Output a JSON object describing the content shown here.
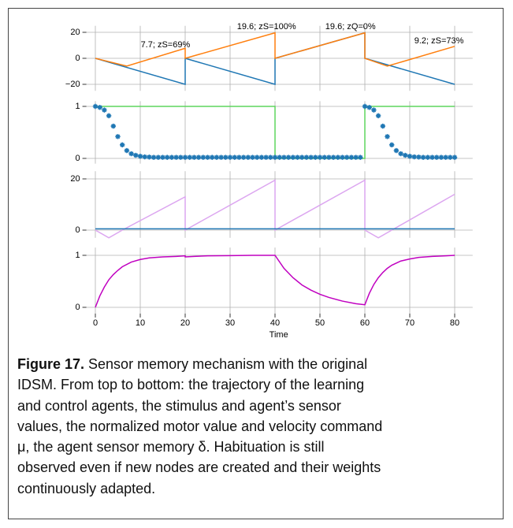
{
  "chart_data": [
    {
      "type": "line",
      "xlim": [
        -2,
        84
      ],
      "ylim": [
        -25,
        25
      ],
      "yticks": [
        {
          "value": -20,
          "label": "−20"
        },
        0,
        20
      ],
      "series": [
        {
          "color": "#1f77b4",
          "x": [
            0,
            20,
            20,
            40,
            40,
            60,
            60,
            80
          ],
          "values": [
            0,
            -20,
            0,
            -20,
            0,
            19.6,
            0,
            -20
          ]
        },
        {
          "color": "#ff7f0e",
          "x": [
            0,
            7,
            20,
            20,
            40,
            40,
            60,
            60,
            65,
            80
          ],
          "values": [
            0,
            -6,
            7.7,
            0,
            19.6,
            0,
            19.6,
            0,
            -6,
            9.2
          ]
        }
      ],
      "annotations": [
        {
          "text": "7.7; zS=69%",
          "x": 15.6,
          "y": 10.3
        },
        {
          "text": "19.6; zS=100%",
          "x": 38.1,
          "y": 24.2
        },
        {
          "text": "19.6; zQ=0%",
          "x": 56.8,
          "y": 24.2
        },
        {
          "text": "9.2; zS=73%",
          "x": 76.5,
          "y": 13.3
        }
      ]
    },
    {
      "type": "line",
      "xlim": [
        -2,
        84
      ],
      "ylim": [
        -0.1,
        1.1
      ],
      "yticks": [
        0,
        1
      ],
      "series": [
        {
          "color": "#5ed65e",
          "x": [
            0,
            40,
            40,
            60,
            60,
            80
          ],
          "values": [
            1,
            1,
            0,
            0,
            1,
            1
          ]
        },
        {
          "color": "#1f77b4",
          "marker": true,
          "x": [
            0,
            1,
            2,
            3,
            4,
            5,
            6,
            7,
            8,
            9,
            10,
            11,
            12,
            13,
            14,
            15,
            16,
            17,
            18,
            19,
            20,
            21,
            22,
            23,
            24,
            25,
            26,
            27,
            28,
            29,
            30,
            31,
            32,
            33,
            34,
            35,
            36,
            37,
            38,
            39,
            40,
            41,
            42,
            43,
            44,
            45,
            46,
            47,
            48,
            49,
            50,
            51,
            52,
            53,
            54,
            55,
            56,
            57,
            58,
            59,
            60,
            61,
            62,
            63,
            64,
            65,
            66,
            67,
            68,
            69,
            70,
            71,
            72,
            73,
            74,
            75,
            76,
            77,
            78,
            79,
            80
          ],
          "values": [
            1,
            0.98,
            0.93,
            0.82,
            0.62,
            0.42,
            0.26,
            0.15,
            0.09,
            0.06,
            0.04,
            0.03,
            0.025,
            0.02,
            0.02,
            0.02,
            0.02,
            0.02,
            0.02,
            0.02,
            0.02,
            0.02,
            0.02,
            0.02,
            0.02,
            0.02,
            0.02,
            0.02,
            0.02,
            0.02,
            0.02,
            0.02,
            0.02,
            0.02,
            0.02,
            0.02,
            0.02,
            0.02,
            0.02,
            0.02,
            0.02,
            0.02,
            0.02,
            0.02,
            0.02,
            0.02,
            0.02,
            0.02,
            0.02,
            0.02,
            0.02,
            0.02,
            0.02,
            0.02,
            0.02,
            0.02,
            0.02,
            0.02,
            0.02,
            0.02,
            1,
            0.98,
            0.93,
            0.82,
            0.62,
            0.42,
            0.26,
            0.15,
            0.09,
            0.06,
            0.04,
            0.03,
            0.025,
            0.02,
            0.02,
            0.02,
            0.02,
            0.02,
            0.02,
            0.02,
            0.02
          ]
        }
      ]
    },
    {
      "type": "line",
      "xlim": [
        -2,
        84
      ],
      "ylim": [
        -3,
        23
      ],
      "yticks": [
        0,
        20
      ],
      "series": [
        {
          "color": "#dca6f0",
          "x": [
            0,
            3,
            6,
            20,
            20,
            40,
            40,
            60,
            60,
            63,
            66,
            80
          ],
          "values": [
            0,
            -3,
            0,
            13,
            0,
            19.5,
            0,
            19.5,
            0,
            -3,
            0,
            14
          ]
        },
        {
          "color": "#1f77b4",
          "x": [
            0,
            80
          ],
          "values": [
            0.5,
            0.5
          ]
        }
      ]
    },
    {
      "type": "line",
      "xlim": [
        -2,
        84
      ],
      "ylim": [
        -0.12,
        1.15
      ],
      "yticks": [
        0,
        1
      ],
      "xticks": [
        0,
        10,
        20,
        30,
        40,
        50,
        60,
        70,
        80
      ],
      "xlabel": "Time",
      "series": [
        {
          "color": "#c000c0",
          "x": [
            0,
            1,
            2,
            3,
            4,
            5,
            6,
            8,
            10,
            12,
            15,
            18,
            20,
            20,
            22,
            25,
            30,
            35,
            40,
            42,
            44,
            46,
            48,
            50,
            52,
            55,
            58,
            60,
            61,
            62,
            63,
            64,
            65,
            66,
            68,
            70,
            72,
            75,
            78,
            80
          ],
          "values": [
            0,
            0.22,
            0.39,
            0.53,
            0.63,
            0.71,
            0.78,
            0.87,
            0.92,
            0.95,
            0.97,
            0.98,
            0.99,
            0.97,
            0.98,
            0.99,
            0.995,
            1,
            1,
            0.75,
            0.57,
            0.43,
            0.33,
            0.25,
            0.19,
            0.12,
            0.07,
            0.05,
            0.27,
            0.44,
            0.57,
            0.67,
            0.75,
            0.81,
            0.89,
            0.93,
            0.96,
            0.98,
            0.99,
            1
          ]
        }
      ]
    }
  ],
  "caption": {
    "label": "Figure 17.",
    "lines": [
      " Sensor memory mechanism with the original",
      "IDSM. From top to bottom: the trajectory of the learning",
      "and control agents, the stimulus and agent’s sensor",
      "values, the normalized motor value and velocity command",
      "μ, the agent sensor memory δ. Habituation is still",
      "observed even if new nodes are created and their weights",
      "continuously adapted."
    ]
  }
}
